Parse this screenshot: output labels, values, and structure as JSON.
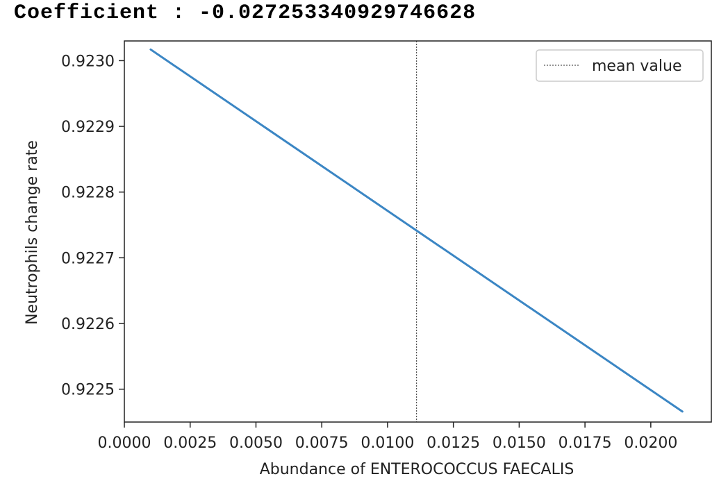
{
  "output": {
    "coefficient_label": "Coefficient : ",
    "coefficient_value": "-0.027253340929746628"
  },
  "chart_data": {
    "type": "line",
    "title": "",
    "xlabel": "Abundance of ENTEROCOCCUS FAECALIS",
    "ylabel": "Neutrophils change rate",
    "xlim": [
      0.0,
      0.0223
    ],
    "ylim": [
      0.92245,
      0.92303
    ],
    "xticks": [
      0.0,
      0.0025,
      0.005,
      0.0075,
      0.01,
      0.0125,
      0.015,
      0.0175,
      0.02
    ],
    "xtick_labels": [
      "0.0000",
      "0.0025",
      "0.0050",
      "0.0075",
      "0.0100",
      "0.0125",
      "0.0150",
      "0.0175",
      "0.0200"
    ],
    "yticks": [
      0.9225,
      0.9226,
      0.9227,
      0.9228,
      0.9229,
      0.923
    ],
    "ytick_labels": [
      "0.9225",
      "0.9226",
      "0.9227",
      "0.9228",
      "0.9229",
      "0.9230"
    ],
    "series": [
      {
        "x": [
          0.001,
          0.0212
        ],
        "y": [
          0.923017,
          0.922466
        ],
        "color": "#3b86c4",
        "style": "solid"
      }
    ],
    "vlines": [
      {
        "name": "mean value",
        "x": 0.0111,
        "color": "#555555",
        "style": "dotted"
      }
    ],
    "legend": {
      "position": "top-right",
      "entries": [
        "mean value"
      ]
    },
    "grid": false
  }
}
